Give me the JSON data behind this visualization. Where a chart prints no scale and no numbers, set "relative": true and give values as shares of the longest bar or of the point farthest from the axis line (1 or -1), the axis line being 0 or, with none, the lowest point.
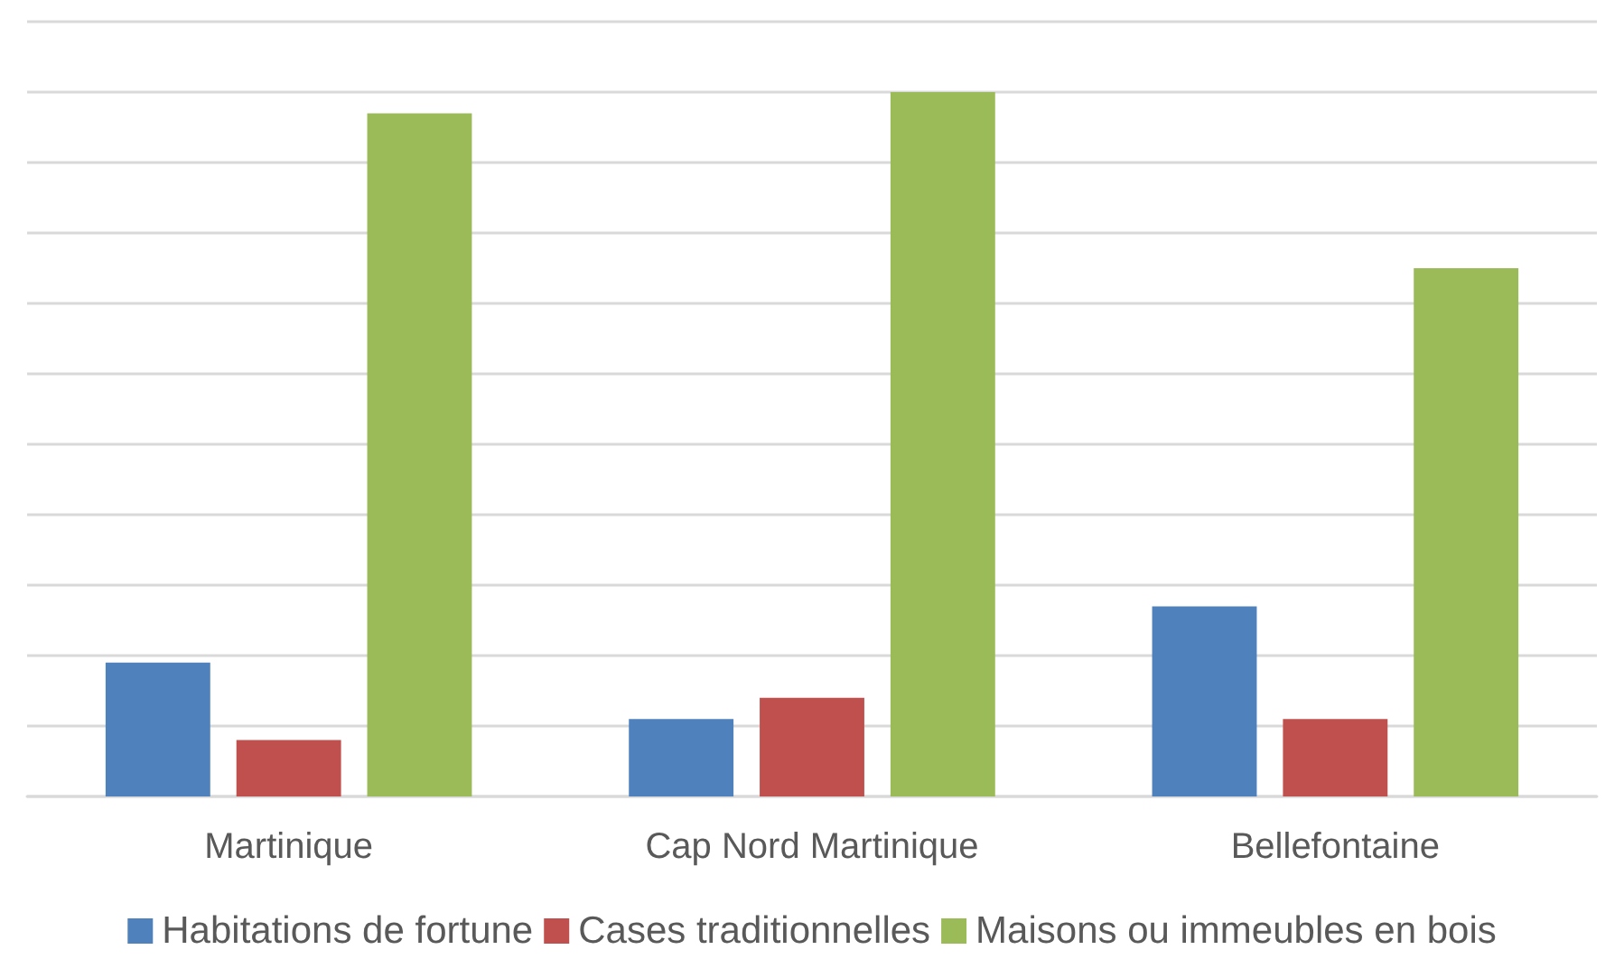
{
  "chart_data": {
    "type": "bar",
    "relative": true,
    "grid": "y",
    "legend": "bottom",
    "categories": [
      "Martinique",
      "Cap Nord Martinique",
      "Bellefontaine"
    ],
    "series": [
      {
        "name": "Habitations de fortune",
        "color": "#4f81bd",
        "values": [
          0.19,
          0.11,
          0.27
        ]
      },
      {
        "name": "Cases traditionnelles",
        "color": "#c0504d",
        "values": [
          0.08,
          0.14,
          0.11
        ]
      },
      {
        "name": "Maisons ou immeubles en bois",
        "color": "#9bbb59",
        "values": [
          0.97,
          1,
          0.75
        ]
      }
    ]
  }
}
